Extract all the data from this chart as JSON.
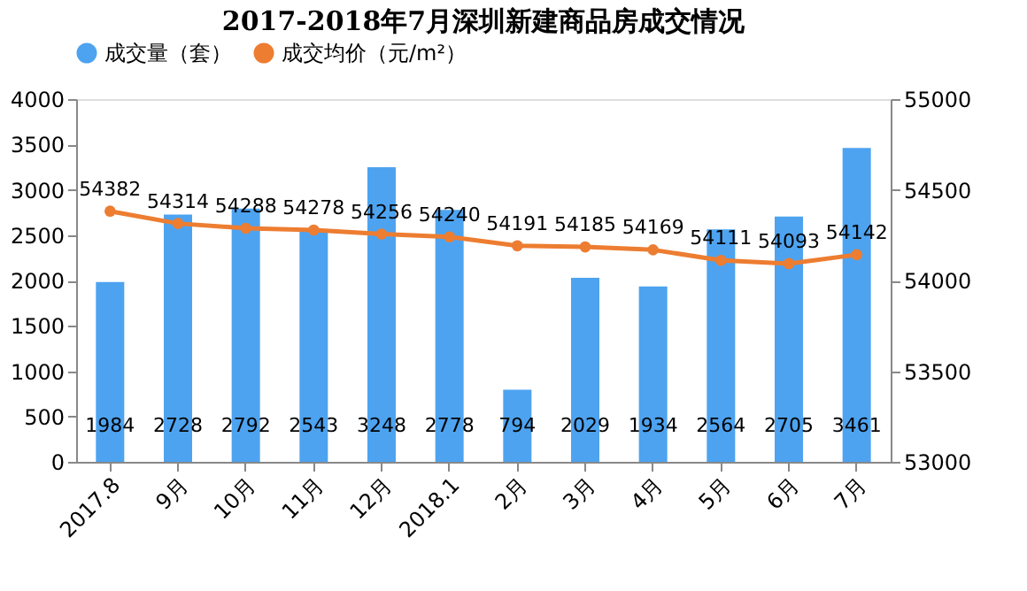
{
  "chart_data": {
    "type": "bar",
    "title": "2017-2018年7月深圳新建商品房成交情况",
    "categories": [
      "2017.8",
      "9月",
      "10月",
      "11月",
      "12月",
      "2018.1",
      "2月",
      "3月",
      "4月",
      "5月",
      "6月",
      "7月"
    ],
    "series": [
      {
        "name": "成交量（套）",
        "color": "#4da3f0",
        "values": [
          1984,
          2728,
          2792,
          2543,
          3248,
          2778,
          794,
          2029,
          1934,
          2564,
          2705,
          3461
        ]
      },
      {
        "name": "成交均价（元/m²）",
        "type": "line",
        "axis": "y2",
        "color": "#ed7d31",
        "marker": "circle",
        "values": [
          54382,
          54314,
          54288,
          54278,
          54256,
          54240,
          54191,
          54185,
          54169,
          54111,
          54093,
          54142
        ]
      }
    ],
    "ylim": [
      0,
      4000
    ],
    "yticks": [
      0,
      500,
      1000,
      1500,
      2000,
      2500,
      3000,
      3500,
      4000
    ],
    "y2lim": [
      53000,
      55000
    ],
    "y2ticks": [
      53000,
      53500,
      54000,
      54500,
      55000
    ],
    "data_labels": true,
    "legend": "top",
    "grid": false
  }
}
